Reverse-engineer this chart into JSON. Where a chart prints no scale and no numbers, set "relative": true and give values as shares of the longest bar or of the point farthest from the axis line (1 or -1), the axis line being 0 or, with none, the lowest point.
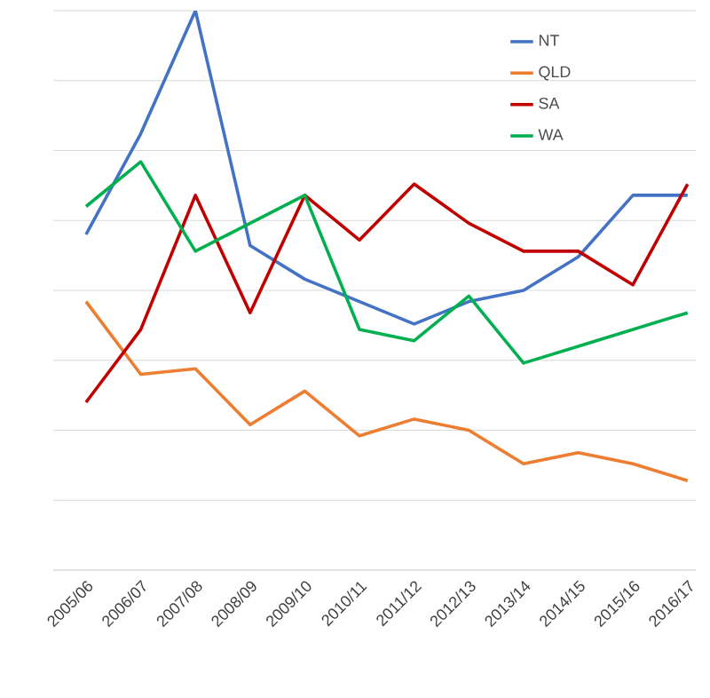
{
  "chart_data": {
    "type": "line",
    "relative": true,
    "grid": "y",
    "legend": "top right",
    "marker": "none",
    "line_style": "solid",
    "categories": [
      "2005/06",
      "2006/07",
      "2007/08",
      "2008/09",
      "2009/10",
      "2010/11",
      "2011/12",
      "2012/13",
      "2013/14",
      "2014/15",
      "2015/16",
      "2016/17"
    ],
    "series": [
      {
        "name": "NT",
        "color": "#4472c4",
        "values": [
          0.6,
          0.78,
          1.0,
          0.58,
          0.52,
          0.48,
          0.44,
          0.48,
          0.5,
          0.56,
          0.67,
          0.67
        ]
      },
      {
        "name": "QLD",
        "color": "#ed7d31",
        "values": [
          0.48,
          0.35,
          0.36,
          0.26,
          0.32,
          0.24,
          0.27,
          0.25,
          0.19,
          0.21,
          0.19,
          0.16
        ]
      },
      {
        "name": "SA",
        "color": "#c00000",
        "values": [
          0.3,
          0.43,
          0.67,
          0.46,
          0.67,
          0.59,
          0.69,
          0.62,
          0.57,
          0.57,
          0.51,
          0.69
        ]
      },
      {
        "name": "WA",
        "color": "#00b050",
        "values": [
          0.65,
          0.73,
          0.57,
          0.62,
          0.67,
          0.43,
          0.41,
          0.49,
          0.37,
          0.4,
          0.43,
          0.46
        ]
      }
    ]
  }
}
